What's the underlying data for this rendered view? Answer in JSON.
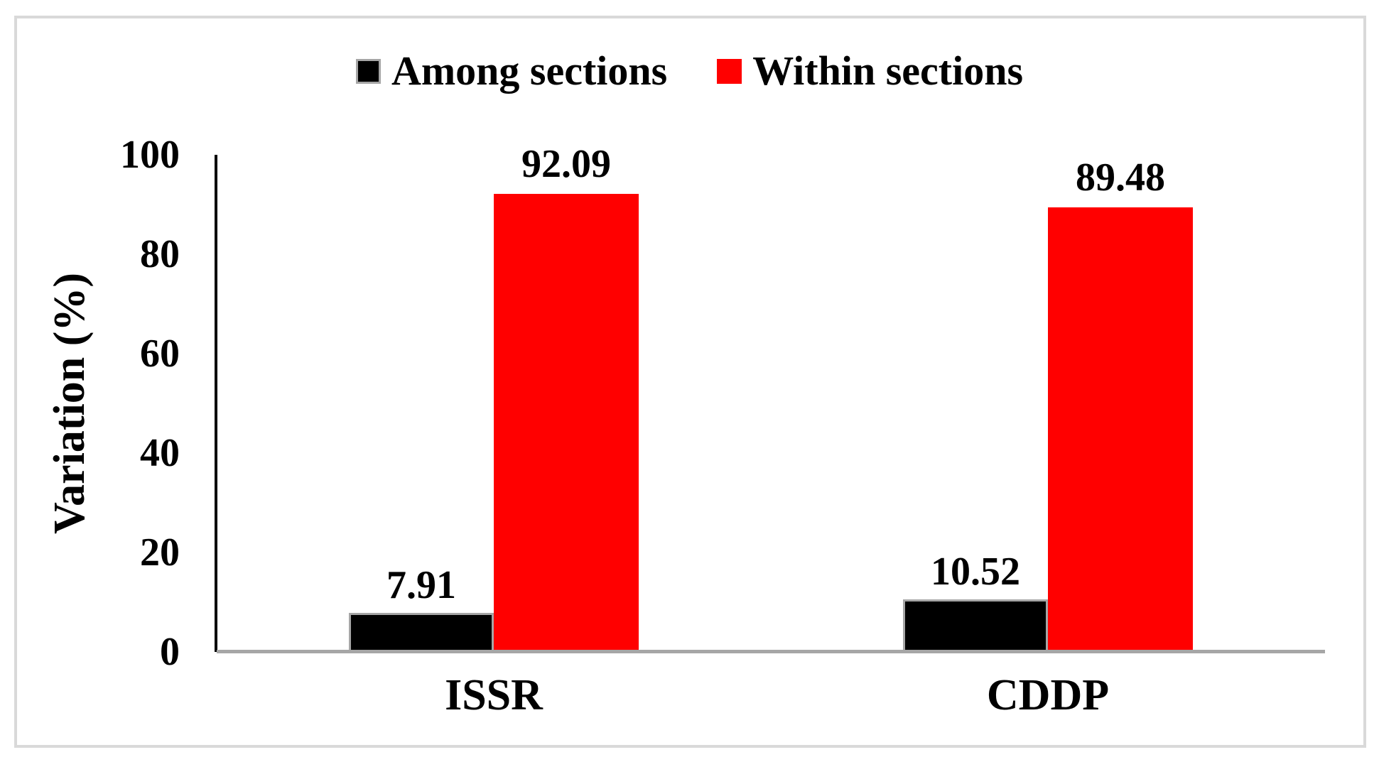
{
  "figure": {
    "background_color": "#ffffff",
    "panel_border_color": "#d9d9d9",
    "axis_line_color": "#000000",
    "baseline_color": "#a6a6a6"
  },
  "chart_data": {
    "type": "bar",
    "title": "",
    "xlabel": "",
    "ylabel": "Variation (%)",
    "ylim": [
      0,
      100
    ],
    "yticks": [
      0,
      20,
      40,
      60,
      80,
      100
    ],
    "grid": false,
    "legend_position": "top-center",
    "categories": [
      "ISSR",
      "CDDP"
    ],
    "series": [
      {
        "name": "Among sections",
        "color": "#000000",
        "values": [
          7.91,
          10.52
        ]
      },
      {
        "name": "Within sections",
        "color": "#ff0000",
        "values": [
          92.09,
          89.48
        ]
      }
    ],
    "data_labels": {
      "Among sections": [
        "7.91",
        "10.52"
      ],
      "Within sections": [
        "92.09",
        "89.48"
      ]
    }
  }
}
